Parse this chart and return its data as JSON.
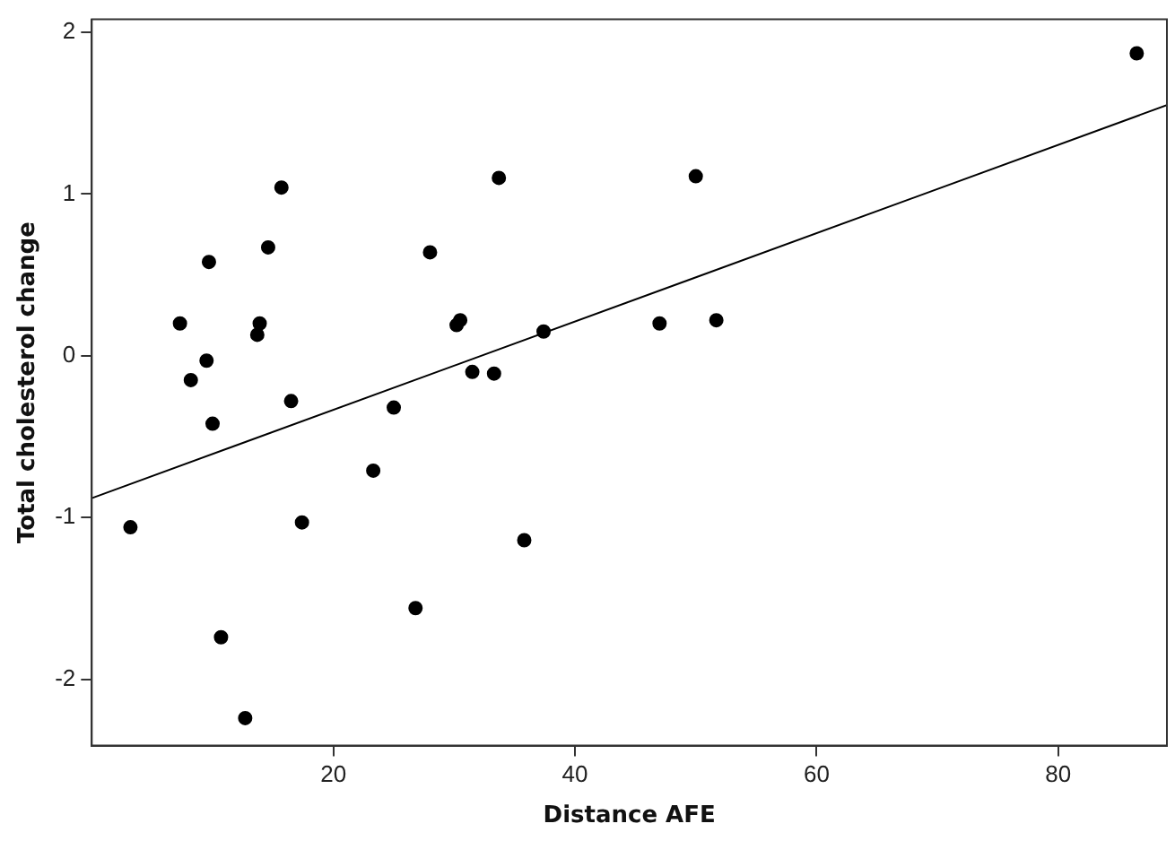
{
  "chart_data": {
    "type": "scatter",
    "xlabel": "Distance AFE",
    "ylabel": "Total cholesterol change",
    "xlim": [
      0,
      89
    ],
    "ylim": [
      -2.41,
      2.08
    ],
    "xticks": [
      20,
      40,
      60,
      80
    ],
    "yticks": [
      -2,
      -1,
      0,
      1,
      2
    ],
    "grid": false,
    "legend": false,
    "marker": "circle",
    "series": [
      {
        "color": "#000000",
        "x": [
          3.2,
          7.3,
          8.2,
          9.7,
          9.5,
          10.0,
          10.7,
          12.7,
          13.7,
          13.9,
          14.6,
          15.7,
          16.5,
          17.4,
          23.3,
          25.0,
          26.8,
          28.0,
          30.2,
          30.5,
          31.5,
          33.3,
          33.7,
          35.8,
          37.4,
          47.0,
          50.0,
          51.7,
          86.5
        ],
        "values": [
          -1.06,
          0.2,
          -0.15,
          0.58,
          -0.03,
          -0.42,
          -1.74,
          -2.24,
          0.13,
          0.2,
          0.67,
          1.04,
          -0.28,
          -1.03,
          -0.71,
          -0.32,
          -1.56,
          0.64,
          0.19,
          0.22,
          -0.1,
          -0.11,
          1.1,
          -1.14,
          0.15,
          0.2,
          1.11,
          0.22,
          1.87
        ]
      },
      {
        "type": "line",
        "color": "#000000",
        "marker": "none",
        "line_style": "solid",
        "x": [
          0,
          89
        ],
        "values": [
          -0.88,
          1.55
        ]
      }
    ]
  }
}
